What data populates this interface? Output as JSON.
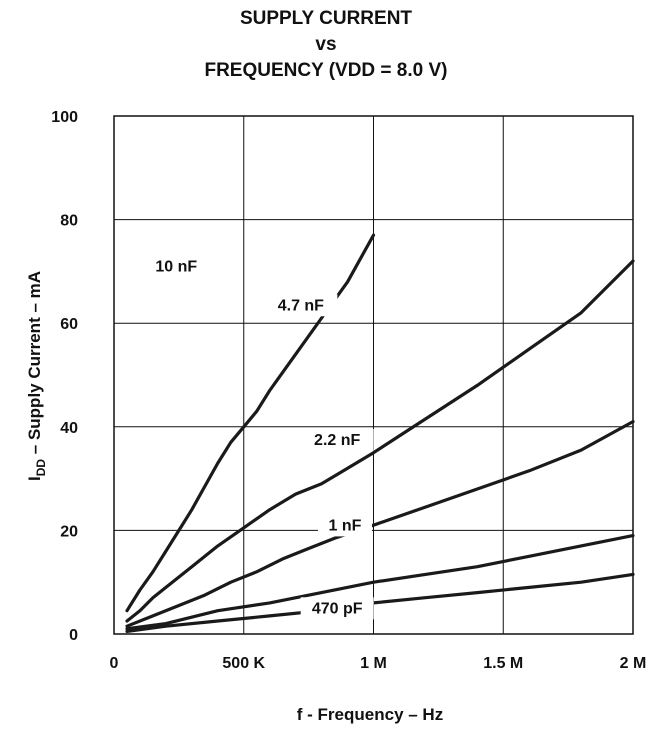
{
  "chart_data": {
    "type": "line",
    "title_lines": [
      "SUPPLY CURRENT",
      "vs",
      "FREQUENCY (VDD = 8.0 V)"
    ],
    "xlabel": "f - Frequency – Hz",
    "ylabel_main": "I",
    "ylabel_sub": "DD",
    "ylabel_rest": " – Supply Current – mA",
    "xlim": [
      0,
      2000000
    ],
    "ylim": [
      0,
      100
    ],
    "x_ticks": [
      {
        "value": 0,
        "label": "0"
      },
      {
        "value": 500000,
        "label": "500 K"
      },
      {
        "value": 1000000,
        "label": "1 M"
      },
      {
        "value": 1500000,
        "label": "1.5 M"
      },
      {
        "value": 2000000,
        "label": "2 M"
      }
    ],
    "y_ticks": [
      {
        "value": 0,
        "label": "0"
      },
      {
        "value": 20,
        "label": "20"
      },
      {
        "value": 40,
        "label": "40"
      },
      {
        "value": 60,
        "label": "60"
      },
      {
        "value": 80,
        "label": "80"
      },
      {
        "value": 100,
        "label": "100"
      }
    ],
    "grid": true,
    "series": [
      {
        "name": "10 nF",
        "x": [
          50000,
          100000,
          150000,
          200000,
          250000,
          300000,
          350000,
          400000,
          450000,
          500000,
          550000,
          600000,
          700000,
          800000,
          900000,
          1000000
        ],
        "y": [
          4.5,
          8.5,
          12,
          16,
          20,
          24,
          28.5,
          33,
          37,
          40,
          43,
          47,
          54,
          61,
          68,
          77
        ]
      },
      {
        "name": "4.7 nF",
        "x": [
          50000,
          100000,
          150000,
          200000,
          300000,
          400000,
          500000,
          600000,
          700000,
          800000,
          900000,
          1000000,
          1200000,
          1400000,
          1600000,
          1800000,
          2000000
        ],
        "y": [
          2.5,
          4.5,
          7,
          9,
          13,
          17,
          20.5,
          24,
          27,
          29,
          32,
          35,
          41.5,
          48,
          55,
          62,
          72
        ]
      },
      {
        "name": "2.2 nF",
        "x": [
          50000,
          150000,
          250000,
          350000,
          450000,
          550000,
          650000,
          750000,
          850000,
          1000000,
          1200000,
          1400000,
          1600000,
          1800000,
          2000000
        ],
        "y": [
          1.5,
          3.5,
          5.5,
          7.5,
          10,
          12,
          14.5,
          16.5,
          18.5,
          21,
          24.5,
          28,
          31.5,
          35.5,
          41
        ]
      },
      {
        "name": "1 nF",
        "x": [
          50000,
          200000,
          400000,
          600000,
          800000,
          1000000,
          1200000,
          1400000,
          1600000,
          1800000,
          2000000
        ],
        "y": [
          1,
          2,
          4.5,
          6,
          8,
          10,
          11.5,
          13,
          15,
          17,
          19
        ]
      },
      {
        "name": "470 pF",
        "x": [
          50000,
          200000,
          400000,
          600000,
          800000,
          1000000,
          1200000,
          1400000,
          1600000,
          1800000,
          2000000
        ],
        "y": [
          0.5,
          1.5,
          2.5,
          3.5,
          4.5,
          6,
          7,
          8,
          9,
          10,
          11.5
        ]
      }
    ]
  }
}
